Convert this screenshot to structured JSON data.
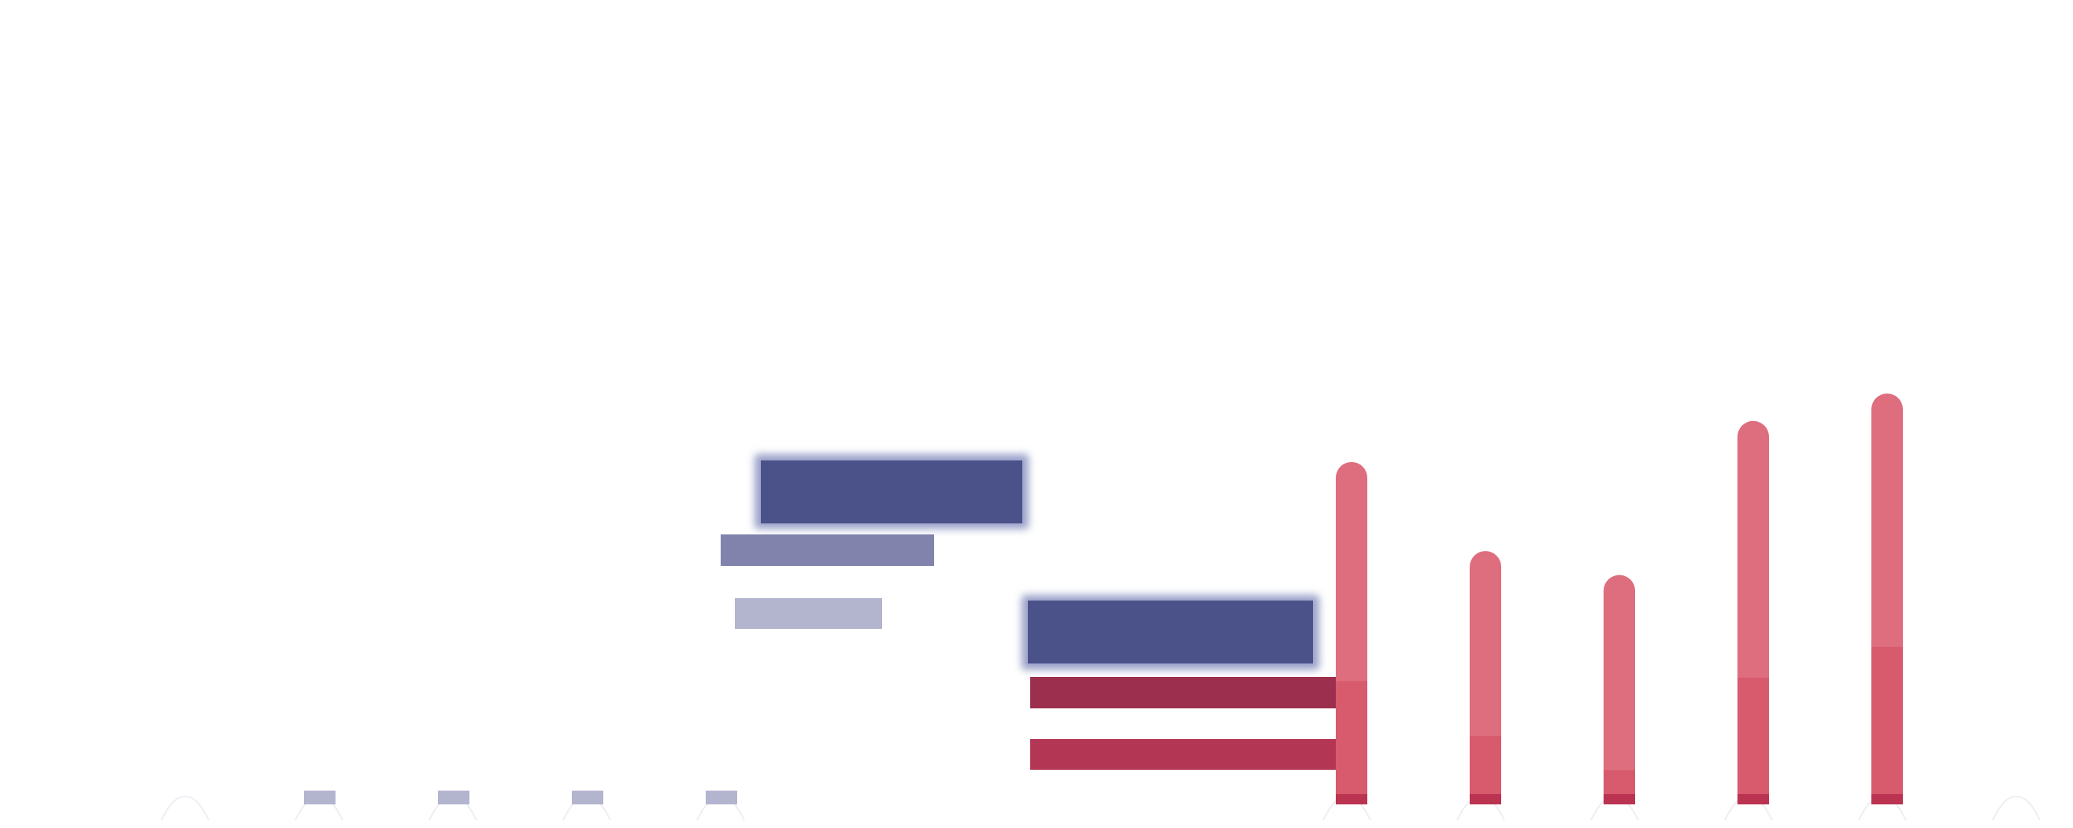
{
  "colors": {
    "background": "#ffffff",
    "navy": "#4b5189",
    "navy_glow": "#9aa0c9",
    "periwinkle": "#8183ac",
    "lavender": "#b3b4ce",
    "maroon": "#9c2f4e",
    "crimson": "#b33655",
    "pink_light": "#de6d7d",
    "pink_mid": "#d75a6d",
    "pink_base": "#ba3350",
    "wave": "#eeeef4"
  },
  "stacked_columns": [
    {
      "total": 100,
      "mid": 36,
      "base": 3
    },
    {
      "total": 74,
      "mid": 20,
      "base": 3
    },
    {
      "total": 67,
      "mid": 10,
      "base": 3
    },
    {
      "total": 112,
      "mid": 37,
      "base": 3
    },
    {
      "total": 120,
      "mid": 46,
      "base": 3
    }
  ],
  "small_stubs": [
    4,
    4,
    4,
    4
  ]
}
